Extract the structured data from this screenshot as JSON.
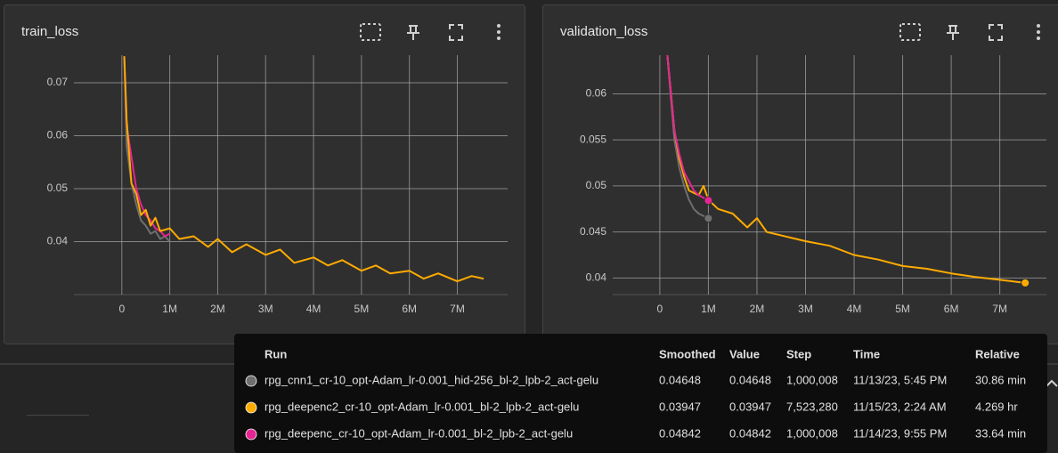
{
  "chart_data": [
    {
      "type": "line",
      "title": "train_loss",
      "grid": true,
      "xlim": [
        -1000000,
        8050000
      ],
      "ylim": [
        0.03,
        0.0752
      ],
      "xticks": [
        0,
        {
          "value": 1000000,
          "label": "1M"
        },
        {
          "value": 2000000,
          "label": "2M"
        },
        {
          "value": 3000000,
          "label": "3M"
        },
        {
          "value": 4000000,
          "label": "4M"
        },
        {
          "value": 5000000,
          "label": "5M"
        },
        {
          "value": 6000000,
          "label": "6M"
        },
        {
          "value": 7000000,
          "label": "7M"
        }
      ],
      "yticks": [
        0.04,
        0.05,
        0.06,
        0.07
      ],
      "series": [
        {
          "color": "#6f6f6f",
          "x": [
            50000,
            100000,
            200000,
            300000,
            400000,
            500000,
            600000,
            700000,
            800000,
            900000,
            1000000
          ],
          "values": [
            0.075,
            0.058,
            0.051,
            0.047,
            0.044,
            0.043,
            0.0415,
            0.042,
            0.0405,
            0.041,
            0.04
          ]
        },
        {
          "color": "#e52592",
          "x": [
            50000,
            100000,
            200000,
            300000,
            400000,
            500000,
            600000,
            700000,
            800000,
            900000,
            1000000
          ],
          "values": [
            0.075,
            0.062,
            0.056,
            0.05,
            0.047,
            0.045,
            0.044,
            0.0425,
            0.042,
            0.041,
            0.0415
          ]
        },
        {
          "color": "#ffab00",
          "x": [
            50000,
            100000,
            150000,
            200000,
            300000,
            400000,
            500000,
            600000,
            700000,
            800000,
            1000000,
            1200000,
            1500000,
            1800000,
            2000000,
            2300000,
            2600000,
            3000000,
            3300000,
            3600000,
            4000000,
            4300000,
            4600000,
            5000000,
            5300000,
            5600000,
            6000000,
            6300000,
            6600000,
            7000000,
            7300000,
            7550000
          ],
          "values": [
            0.075,
            0.063,
            0.057,
            0.051,
            0.049,
            0.045,
            0.046,
            0.043,
            0.0445,
            0.042,
            0.0425,
            0.0405,
            0.041,
            0.039,
            0.0405,
            0.038,
            0.0395,
            0.0375,
            0.0385,
            0.036,
            0.037,
            0.0355,
            0.0365,
            0.0345,
            0.0355,
            0.034,
            0.0345,
            0.033,
            0.034,
            0.0325,
            0.0335,
            0.033
          ]
        }
      ]
    },
    {
      "type": "line",
      "title": "validation_loss",
      "grid": true,
      "markers": "last",
      "xlim": [
        -970000,
        7960000
      ],
      "ylim": [
        0.0382,
        0.0642
      ],
      "xticks": [
        0,
        {
          "value": 1000000,
          "label": "1M"
        },
        {
          "value": 2000000,
          "label": "2M"
        },
        {
          "value": 3000000,
          "label": "3M"
        },
        {
          "value": 4000000,
          "label": "4M"
        },
        {
          "value": 5000000,
          "label": "5M"
        },
        {
          "value": 6000000,
          "label": "6M"
        },
        {
          "value": 7000000,
          "label": "7M"
        }
      ],
      "yticks": [
        0.04,
        0.045,
        0.05,
        0.055,
        0.06
      ],
      "series": [
        {
          "color": "#6f6f6f",
          "x": [
            150000,
            300000,
            400000,
            500000,
            600000,
            700000,
            800000,
            1000000
          ],
          "values": [
            0.0645,
            0.055,
            0.052,
            0.05,
            0.0485,
            0.0475,
            0.047,
            0.04648
          ]
        },
        {
          "color": "#ffab00",
          "x": [
            150000,
            300000,
            400000,
            500000,
            600000,
            800000,
            900000,
            1000000,
            1200000,
            1500000,
            1800000,
            2000000,
            2200000,
            2600000,
            3000000,
            3500000,
            4000000,
            4500000,
            5000000,
            5500000,
            6000000,
            6500000,
            7000000,
            7523280
          ],
          "values": [
            0.0645,
            0.056,
            0.053,
            0.051,
            0.0495,
            0.049,
            0.05,
            0.0485,
            0.0475,
            0.047,
            0.0455,
            0.0465,
            0.045,
            0.0445,
            0.044,
            0.0435,
            0.0425,
            0.042,
            0.0413,
            0.041,
            0.0405,
            0.0401,
            0.0398,
            0.03947
          ]
        },
        {
          "color": "#e52592",
          "x": [
            150000,
            300000,
            400000,
            500000,
            600000,
            700000,
            800000,
            1000000
          ],
          "values": [
            0.0645,
            0.056,
            0.0535,
            0.0515,
            0.0505,
            0.0495,
            0.049,
            0.04842
          ]
        }
      ]
    }
  ],
  "tooltip": {
    "headers": [
      "Run",
      "Smoothed",
      "Value",
      "Step",
      "Time",
      "Relative"
    ],
    "rows": [
      {
        "color": "#6f6f6f",
        "cells": [
          "rpg_cnn1_cr-10_opt-Adam_lr-0.001_hid-256_bl-2_lpb-2_act-gelu",
          "0.04648",
          "0.04648",
          "1,000,008",
          "11/13/23, 5:45 PM",
          "30.86 min"
        ]
      },
      {
        "color": "#ffab00",
        "cells": [
          "rpg_deepenc2_cr-10_opt-Adam_lr-0.001_bl-2_lpb-2_act-gelu",
          "0.03947",
          "0.03947",
          "7,523,280",
          "11/15/23, 2:24 AM",
          "4.269 hr"
        ]
      },
      {
        "color": "#e52592",
        "cells": [
          "rpg_deepenc_cr-10_opt-Adam_lr-0.001_bl-2_lpb-2_act-gelu",
          "0.04842",
          "0.04842",
          "1,000,008",
          "11/14/23, 9:55 PM",
          "33.64 min"
        ]
      }
    ]
  }
}
